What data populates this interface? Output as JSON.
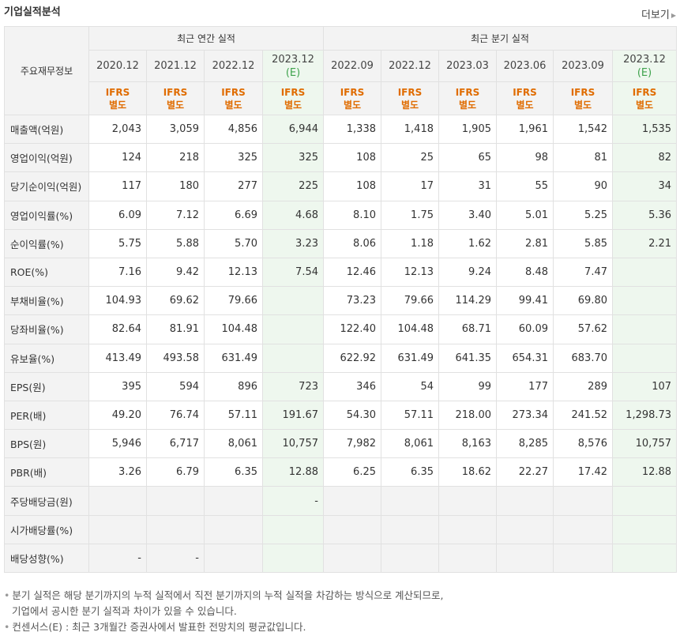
{
  "header": {
    "title": "기업실적분석",
    "more_label": "더보기"
  },
  "table": {
    "row_header_label": "주요재무정보",
    "group_annual": "최근 연간 실적",
    "group_quarter": "최근 분기 실적",
    "periods": [
      {
        "label": "2020.12",
        "est": ""
      },
      {
        "label": "2021.12",
        "est": ""
      },
      {
        "label": "2022.12",
        "est": ""
      },
      {
        "label": "2023.12",
        "est": "(E)"
      },
      {
        "label": "2022.09",
        "est": ""
      },
      {
        "label": "2022.12",
        "est": ""
      },
      {
        "label": "2023.03",
        "est": ""
      },
      {
        "label": "2023.06",
        "est": ""
      },
      {
        "label": "2023.09",
        "est": ""
      },
      {
        "label": "2023.12",
        "est": "(E)"
      }
    ],
    "ifrs_top": "IFRS",
    "ifrs_bottom": "별도",
    "rows": [
      {
        "label": "매출액(억원)",
        "values": [
          "2,043",
          "3,059",
          "4,856",
          "6,944",
          "1,338",
          "1,418",
          "1,905",
          "1,961",
          "1,542",
          "1,535"
        ]
      },
      {
        "label": "영업이익(억원)",
        "values": [
          "124",
          "218",
          "325",
          "325",
          "108",
          "25",
          "65",
          "98",
          "81",
          "82"
        ]
      },
      {
        "label": "당기순이익(억원)",
        "values": [
          "117",
          "180",
          "277",
          "225",
          "108",
          "17",
          "31",
          "55",
          "90",
          "34"
        ]
      },
      {
        "label": "영업이익률(%)",
        "values": [
          "6.09",
          "7.12",
          "6.69",
          "4.68",
          "8.10",
          "1.75",
          "3.40",
          "5.01",
          "5.25",
          "5.36"
        ]
      },
      {
        "label": "순이익률(%)",
        "values": [
          "5.75",
          "5.88",
          "5.70",
          "3.23",
          "8.06",
          "1.18",
          "1.62",
          "2.81",
          "5.85",
          "2.21"
        ]
      },
      {
        "label": "ROE(%)",
        "values": [
          "7.16",
          "9.42",
          "12.13",
          "7.54",
          "12.46",
          "12.13",
          "9.24",
          "8.48",
          "7.47",
          ""
        ]
      },
      {
        "label": "부채비율(%)",
        "values": [
          "104.93",
          "69.62",
          "79.66",
          "",
          "73.23",
          "79.66",
          "114.29",
          "99.41",
          "69.80",
          ""
        ]
      },
      {
        "label": "당좌비율(%)",
        "values": [
          "82.64",
          "81.91",
          "104.48",
          "",
          "122.40",
          "104.48",
          "68.71",
          "60.09",
          "57.62",
          ""
        ]
      },
      {
        "label": "유보율(%)",
        "values": [
          "413.49",
          "493.58",
          "631.49",
          "",
          "622.92",
          "631.49",
          "641.35",
          "654.31",
          "683.70",
          ""
        ]
      },
      {
        "label": "EPS(원)",
        "values": [
          "395",
          "594",
          "896",
          "723",
          "346",
          "54",
          "99",
          "177",
          "289",
          "107"
        ]
      },
      {
        "label": "PER(배)",
        "values": [
          "49.20",
          "76.74",
          "57.11",
          "191.67",
          "54.30",
          "57.11",
          "218.00",
          "273.34",
          "241.52",
          "1,298.73"
        ]
      },
      {
        "label": "BPS(원)",
        "values": [
          "5,946",
          "6,717",
          "8,061",
          "10,757",
          "7,982",
          "8,061",
          "8,163",
          "8,285",
          "8,576",
          "10,757"
        ]
      },
      {
        "label": "PBR(배)",
        "values": [
          "3.26",
          "6.79",
          "6.35",
          "12.88",
          "6.25",
          "6.35",
          "18.62",
          "22.27",
          "17.42",
          "12.88"
        ]
      },
      {
        "label": "주당배당금(원)",
        "values": [
          "",
          "",
          "",
          "-",
          "",
          "",
          "",
          "",
          "",
          ""
        ]
      },
      {
        "label": "시가배당률(%)",
        "values": [
          "",
          "",
          "",
          "",
          "",
          "",
          "",
          "",
          "",
          ""
        ]
      },
      {
        "label": "배당성향(%)",
        "values": [
          "-",
          "-",
          "",
          "",
          "",
          "",
          "",
          "",
          "",
          ""
        ]
      }
    ]
  },
  "notes": {
    "line1": "분기 실적은 해당 분기까지의 누적 실적에서 직전 분기까지의 누적 실적을 차감하는 방식으로 계산되므로,",
    "line2": "기업에서 공시한 분기 실적과 차이가 있을 수 있습니다.",
    "line3": "컨센서스(E) : 최근 3개월간 증권사에서 발표한 전망치의 평균값입니다."
  },
  "colors": {
    "ifrs": "#e06c00",
    "estimate_bg": "#eef7ee",
    "estimate_text": "#3fa34d",
    "header_bg": "#f3f3f3"
  }
}
